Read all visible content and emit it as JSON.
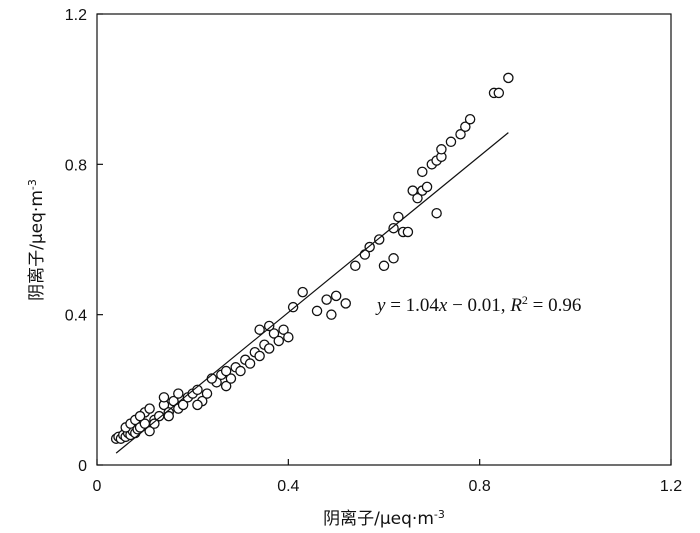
{
  "chart_data": {
    "type": "scatter",
    "xlabel": "阴离子/μeq·m",
    "xlabel_sup": "-3",
    "ylabel": "阴离子/μeq·m",
    "ylabel_sup": "-3",
    "xlim": [
      0,
      1.2
    ],
    "ylim": [
      0,
      1.2
    ],
    "xticks": [
      "0",
      "0.4",
      "0.8",
      "1.2"
    ],
    "yticks": [
      "0",
      "0.4",
      "0.8",
      "1.2"
    ],
    "xtick_values": [
      0,
      0.4,
      0.8,
      1.2
    ],
    "ytick_values": [
      0,
      0.4,
      0.8,
      1.2
    ],
    "grid": false,
    "fit_line": {
      "slope": 1.04,
      "intercept": -0.01,
      "x_range": [
        0.04,
        0.86
      ]
    },
    "annotation": {
      "y": "y",
      "eq": " = 1.04",
      "x": "x",
      "rest": " − 0.01, ",
      "r": "R",
      "r_sup": "2",
      "r_val": " = 0.96"
    },
    "points": [
      [
        0.04,
        0.07
      ],
      [
        0.045,
        0.075
      ],
      [
        0.05,
        0.07
      ],
      [
        0.055,
        0.08
      ],
      [
        0.06,
        0.075
      ],
      [
        0.065,
        0.085
      ],
      [
        0.07,
        0.08
      ],
      [
        0.075,
        0.09
      ],
      [
        0.08,
        0.085
      ],
      [
        0.085,
        0.095
      ],
      [
        0.06,
        0.1
      ],
      [
        0.07,
        0.11
      ],
      [
        0.08,
        0.12
      ],
      [
        0.09,
        0.1
      ],
      [
        0.1,
        0.11
      ],
      [
        0.11,
        0.09
      ],
      [
        0.12,
        0.12
      ],
      [
        0.1,
        0.14
      ],
      [
        0.11,
        0.15
      ],
      [
        0.13,
        0.13
      ],
      [
        0.14,
        0.16
      ],
      [
        0.15,
        0.14
      ],
      [
        0.16,
        0.17
      ],
      [
        0.17,
        0.15
      ],
      [
        0.18,
        0.16
      ],
      [
        0.19,
        0.18
      ],
      [
        0.2,
        0.19
      ],
      [
        0.21,
        0.2
      ],
      [
        0.22,
        0.17
      ],
      [
        0.23,
        0.19
      ],
      [
        0.25,
        0.22
      ],
      [
        0.26,
        0.24
      ],
      [
        0.27,
        0.21
      ],
      [
        0.28,
        0.23
      ],
      [
        0.29,
        0.26
      ],
      [
        0.3,
        0.25
      ],
      [
        0.31,
        0.28
      ],
      [
        0.32,
        0.27
      ],
      [
        0.33,
        0.3
      ],
      [
        0.34,
        0.29
      ],
      [
        0.35,
        0.32
      ],
      [
        0.36,
        0.31
      ],
      [
        0.37,
        0.35
      ],
      [
        0.38,
        0.33
      ],
      [
        0.39,
        0.36
      ],
      [
        0.4,
        0.34
      ],
      [
        0.34,
        0.36
      ],
      [
        0.36,
        0.37
      ],
      [
        0.41,
        0.42
      ],
      [
        0.43,
        0.46
      ],
      [
        0.46,
        0.41
      ],
      [
        0.48,
        0.44
      ],
      [
        0.5,
        0.45
      ],
      [
        0.52,
        0.43
      ],
      [
        0.49,
        0.4
      ],
      [
        0.54,
        0.53
      ],
      [
        0.56,
        0.56
      ],
      [
        0.57,
        0.58
      ],
      [
        0.59,
        0.6
      ],
      [
        0.6,
        0.53
      ],
      [
        0.62,
        0.55
      ],
      [
        0.62,
        0.63
      ],
      [
        0.63,
        0.66
      ],
      [
        0.64,
        0.62
      ],
      [
        0.65,
        0.62
      ],
      [
        0.67,
        0.71
      ],
      [
        0.68,
        0.73
      ],
      [
        0.69,
        0.74
      ],
      [
        0.7,
        0.8
      ],
      [
        0.71,
        0.81
      ],
      [
        0.72,
        0.82
      ],
      [
        0.72,
        0.84
      ],
      [
        0.71,
        0.67
      ],
      [
        0.74,
        0.86
      ],
      [
        0.76,
        0.88
      ],
      [
        0.77,
        0.9
      ],
      [
        0.78,
        0.92
      ],
      [
        0.83,
        0.99
      ],
      [
        0.84,
        0.99
      ],
      [
        0.86,
        1.03
      ],
      [
        0.68,
        0.78
      ],
      [
        0.66,
        0.73
      ],
      [
        0.14,
        0.18
      ],
      [
        0.17,
        0.19
      ],
      [
        0.24,
        0.23
      ],
      [
        0.09,
        0.13
      ],
      [
        0.12,
        0.11
      ],
      [
        0.15,
        0.13
      ],
      [
        0.21,
        0.16
      ],
      [
        0.27,
        0.25
      ]
    ]
  }
}
